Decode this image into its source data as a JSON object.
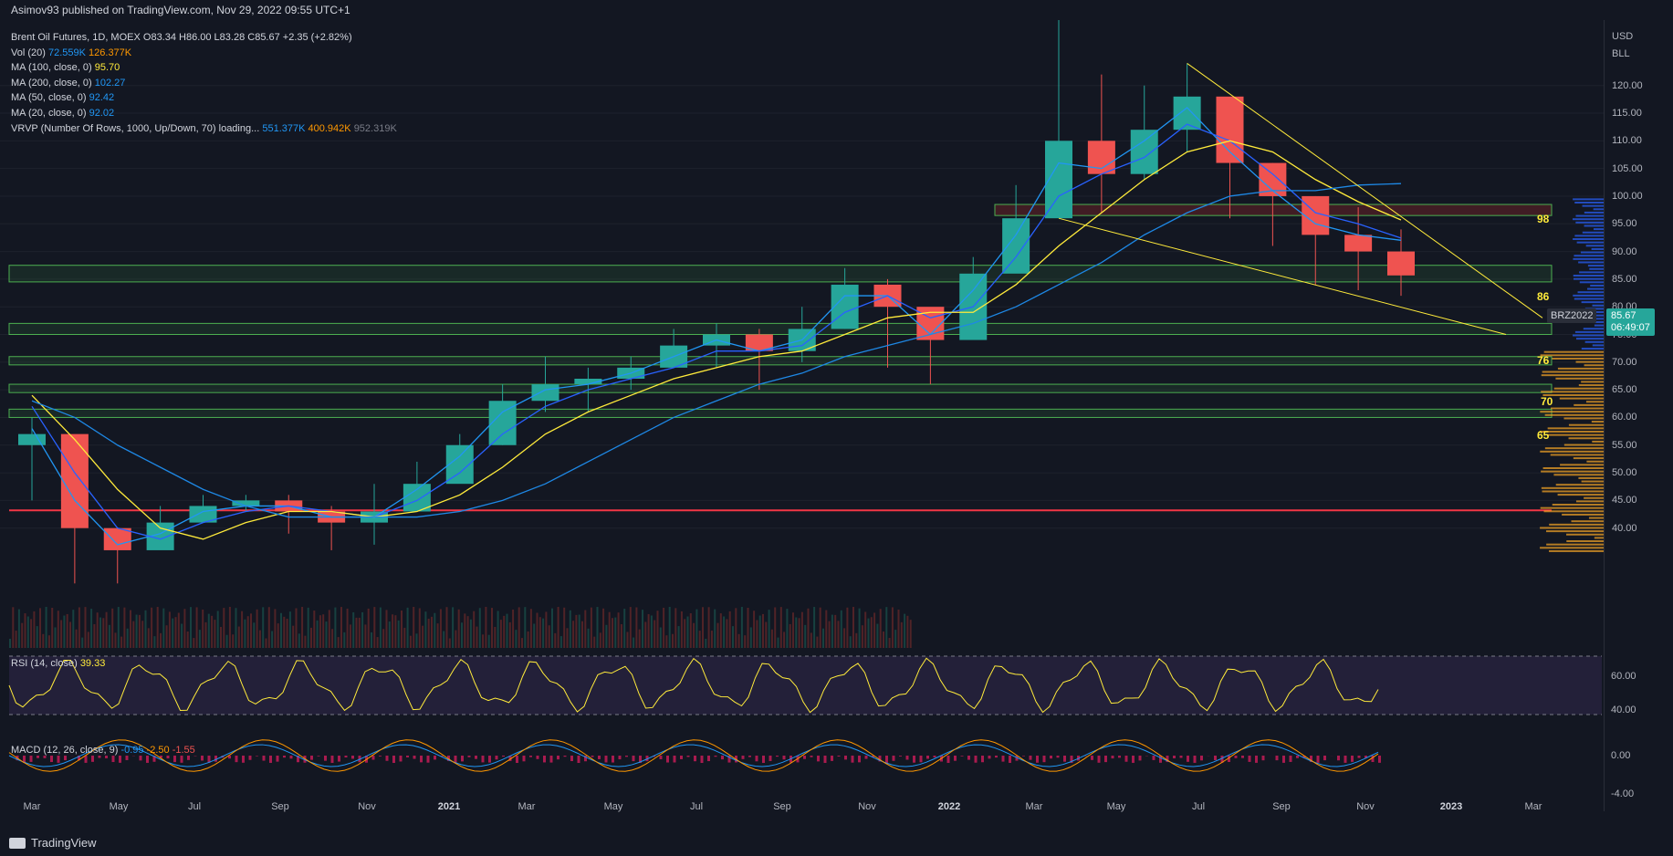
{
  "header": {
    "publisher_line": "Asimov93 published on TradingView.com, Nov 29, 2022 09:55 UTC+1"
  },
  "legend": {
    "title": "Brent Oil Futures, 1D, MOEX",
    "ohlc": "O83.34 H86.00 L83.28 C85.67 +2.35 (+2.82%)",
    "vol_label": "Vol (20)",
    "vol_a": "72.559K",
    "vol_b": "126.377K",
    "ma100_label": "MA (100, close, 0)",
    "ma100": "95.70",
    "ma200_label": "MA (200, close, 0)",
    "ma200": "102.27",
    "ma50_label": "MA (50, close, 0)",
    "ma50": "92.42",
    "ma20_label": "MA (20, close, 0)",
    "ma20": "92.02",
    "vrvp_label": "VRVP (Number Of Rows, 1000, Up/Down, 70) loading...",
    "vrvp_up": "551.377K",
    "vrvp_down": "400.942K",
    "vrvp_total": "952.319K"
  },
  "price_axis": {
    "unit1": "USD",
    "unit2": "BLL",
    "ticks": [
      "120.00",
      "115.00",
      "110.00",
      "105.00",
      "100.00",
      "95.00",
      "90.00",
      "85.00",
      "80.00",
      "75.00",
      "70.00",
      "65.00",
      "60.00",
      "55.00",
      "50.00",
      "45.00",
      "40.00"
    ],
    "symbol": "BRZ2022",
    "last_price": "85.67",
    "countdown": "06:49:07"
  },
  "zones": {
    "z98": "98",
    "z86": "86",
    "z76": "76",
    "z70": "70",
    "z65": "65"
  },
  "rsi": {
    "label": "RSI (14, close)",
    "value": "39.33",
    "ticks": [
      "60.00",
      "40.00"
    ]
  },
  "macd": {
    "label": "MACD (12, 26, close, 9)",
    "v1": "-0.95",
    "v2": "-2.50",
    "v3": "-1.55",
    "ticks": [
      "0.00",
      "-4.00"
    ]
  },
  "time_axis": {
    "ticks": [
      "Mar",
      "May",
      "Jul",
      "Sep",
      "Nov",
      "2021",
      "Mar",
      "May",
      "Jul",
      "Sep",
      "Nov",
      "2022",
      "Mar",
      "May",
      "Jul",
      "Sep",
      "Nov",
      "2023",
      "Mar"
    ]
  },
  "footer": {
    "brand": "TradingView"
  },
  "colors": {
    "up": "#26a69a",
    "down": "#ef5350",
    "ma20": "#2196f3",
    "ma50": "#2962ff",
    "ma100": "#ffeb3b",
    "ma200": "#1e88e5",
    "zone": "#4caf50",
    "support": "#f23645",
    "rsi": "#ffeb3b",
    "macd": "#2196f3",
    "signal": "#ff9800"
  },
  "chart_data": {
    "type": "candlestick",
    "x": [
      "2020-03",
      "2020-04",
      "2020-05",
      "2020-06",
      "2020-07",
      "2020-08",
      "2020-09",
      "2020-10",
      "2020-11",
      "2020-12",
      "2021-01",
      "2021-02",
      "2021-03",
      "2021-04",
      "2021-05",
      "2021-06",
      "2021-07",
      "2021-08",
      "2021-09",
      "2021-10",
      "2021-11",
      "2021-12",
      "2022-01",
      "2022-02",
      "2022-03",
      "2022-04",
      "2022-05",
      "2022-06",
      "2022-07",
      "2022-08",
      "2022-09",
      "2022-10",
      "2022-11"
    ],
    "close": [
      57,
      40,
      36,
      41,
      44,
      45,
      43,
      41,
      43,
      48,
      55,
      63,
      66,
      67,
      69,
      73,
      75,
      72,
      76,
      84,
      80,
      74,
      86,
      96,
      110,
      104,
      112,
      118,
      106,
      100,
      93,
      90,
      85.67
    ],
    "high": [
      60,
      48,
      40,
      44,
      46,
      46,
      46,
      44,
      48,
      52,
      57,
      66,
      71,
      69,
      71,
      76,
      77,
      76,
      80,
      87,
      85,
      79,
      89,
      102,
      139,
      122,
      120,
      124,
      114,
      106,
      100,
      98,
      94
    ],
    "low": [
      45,
      30,
      30,
      37,
      41,
      43,
      39,
      36,
      37,
      46,
      51,
      55,
      61,
      61,
      65,
      69,
      69,
      65,
      70,
      76,
      69,
      66,
      76,
      87,
      97,
      97,
      103,
      108,
      96,
      91,
      84,
      83,
      82
    ],
    "series": [
      {
        "name": "MA (20, close, 0)",
        "values": [
          58,
          45,
          37,
          39,
          43,
          44,
          44,
          42,
          42,
          47,
          53,
          61,
          65,
          66,
          68,
          71,
          74,
          72,
          74,
          82,
          82,
          75,
          83,
          93,
          106,
          105,
          110,
          116,
          108,
          101,
          95,
          93,
          92.02
        ]
      },
      {
        "name": "MA (50, close, 0)",
        "values": [
          62,
          50,
          40,
          38,
          41,
          43,
          44,
          43,
          42,
          45,
          50,
          57,
          62,
          65,
          67,
          69,
          72,
          72,
          73,
          79,
          82,
          78,
          80,
          89,
          100,
          104,
          107,
          113,
          110,
          104,
          97,
          95,
          92.42
        ]
      },
      {
        "name": "MA (100, close, 0)",
        "values": [
          64,
          56,
          47,
          40,
          38,
          41,
          43,
          43,
          42,
          43,
          46,
          51,
          57,
          61,
          64,
          67,
          69,
          71,
          72,
          75,
          78,
          79,
          79,
          84,
          91,
          97,
          103,
          108,
          110,
          108,
          103,
          99,
          95.7
        ]
      },
      {
        "name": "MA (200, close, 0)",
        "values": [
          63,
          60,
          55,
          51,
          47,
          44,
          42,
          42,
          42,
          42,
          43,
          45,
          48,
          52,
          56,
          60,
          63,
          66,
          68,
          71,
          73,
          75,
          77,
          80,
          84,
          88,
          93,
          97,
          100,
          101,
          101,
          102,
          102.27
        ]
      }
    ],
    "horizontal_levels": [
      98,
      86,
      76,
      70,
      65,
      60
    ],
    "ylim": [
      35,
      131
    ]
  }
}
